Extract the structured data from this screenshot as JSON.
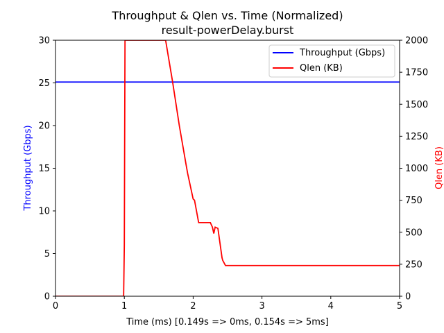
{
  "chart_data": {
    "type": "line",
    "title": "Throughput & Qlen vs. Time (Normalized)",
    "subtitle": "result-powerDelay.burst",
    "xlabel": "Time (ms) [0.149s => 0ms, 0.154s => 5ms]",
    "ylabel_left": "Throughput (Gbps)",
    "ylabel_right": "Qlen (KB)",
    "xlim": [
      0,
      5
    ],
    "ylim_left": [
      0,
      30
    ],
    "ylim_right": [
      0,
      2000
    ],
    "x_ticks": [
      "0",
      "1",
      "2",
      "3",
      "4",
      "5"
    ],
    "y_ticks_left": [
      "0",
      "5",
      "10",
      "15",
      "20",
      "25",
      "30"
    ],
    "y_ticks_right": [
      "0",
      "250",
      "500",
      "750",
      "1000",
      "1250",
      "1500",
      "1750",
      "2000"
    ],
    "grid": false,
    "legend_position": "top-right",
    "series": [
      {
        "name": "Throughput (Gbps)",
        "axis": "left",
        "color": "#0000ff",
        "x": [
          0,
          5
        ],
        "y": [
          25.1,
          25.1
        ]
      },
      {
        "name": "Qlen (KB)",
        "axis": "right",
        "color": "#ff0000",
        "x": [
          0,
          0.99,
          1.0,
          1.01,
          1.6,
          1.7,
          1.8,
          1.9,
          1.92,
          2.0,
          2.02,
          2.08,
          2.25,
          2.28,
          2.3,
          2.32,
          2.36,
          2.42,
          2.43,
          2.47,
          2.52,
          2.55,
          3.0,
          4.0,
          5.0
        ],
        "y": [
          0,
          0,
          400,
          2000,
          2000,
          1680,
          1330,
          1020,
          960,
          760,
          750,
          575,
          575,
          540,
          490,
          540,
          530,
          300,
          280,
          240,
          240,
          240,
          240,
          240,
          240
        ]
      }
    ]
  }
}
